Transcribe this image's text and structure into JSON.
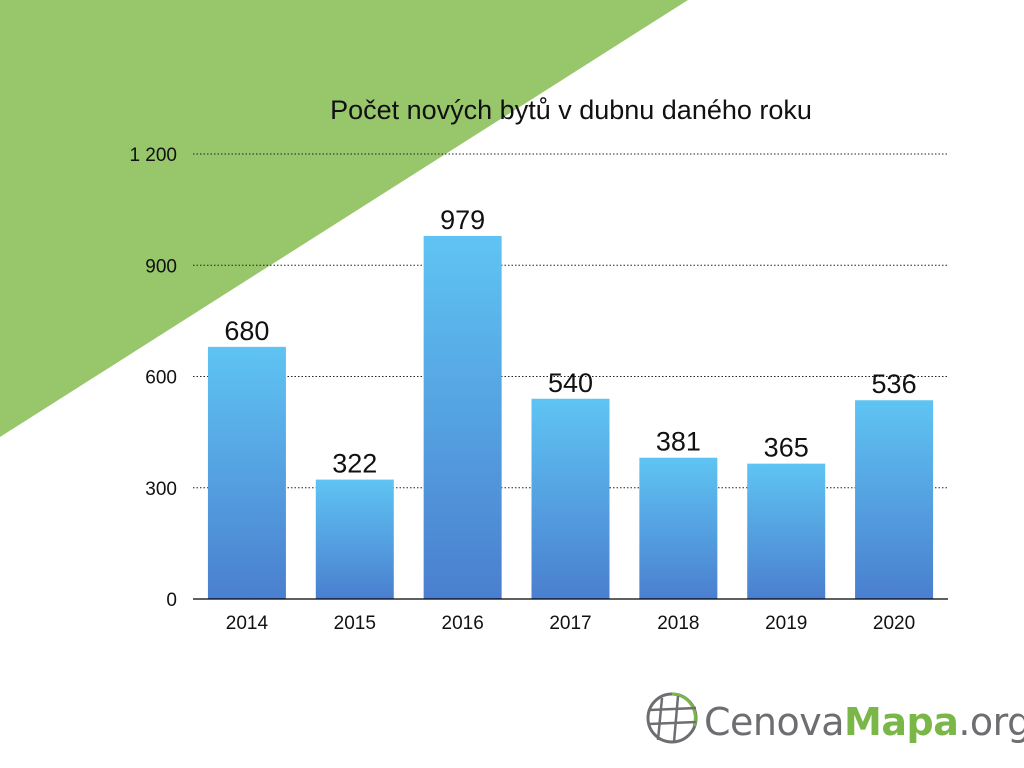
{
  "colors": {
    "accent_green": "#97c66b",
    "bar_top": "#5fc4f3",
    "bar_bottom": "#4a7fcf",
    "grid": "#222222",
    "text": "#111111",
    "logo_gray": "#6d6e71",
    "logo_green": "#7ab648"
  },
  "logo": {
    "part1": "Cenova",
    "part2": "Mapa",
    "part3": ".org",
    "icon": "globe-icon"
  },
  "chart_data": {
    "type": "bar",
    "title": "Počet nových bytů v dubnu daného roku",
    "xlabel": "",
    "ylabel": "",
    "categories": [
      "2014",
      "2015",
      "2016",
      "2017",
      "2018",
      "2019",
      "2020"
    ],
    "values": [
      680,
      322,
      979,
      540,
      381,
      365,
      536
    ],
    "data_labels": [
      "680",
      "322",
      "979",
      "540",
      "381",
      "365",
      "536"
    ],
    "ylim": [
      0,
      1200
    ],
    "yticks": [
      0,
      300,
      600,
      900,
      1200
    ],
    "ytick_labels": [
      "0",
      "300",
      "600",
      "900",
      "1 200"
    ],
    "grid": true,
    "grid_style": "dotted",
    "legend": "none"
  }
}
